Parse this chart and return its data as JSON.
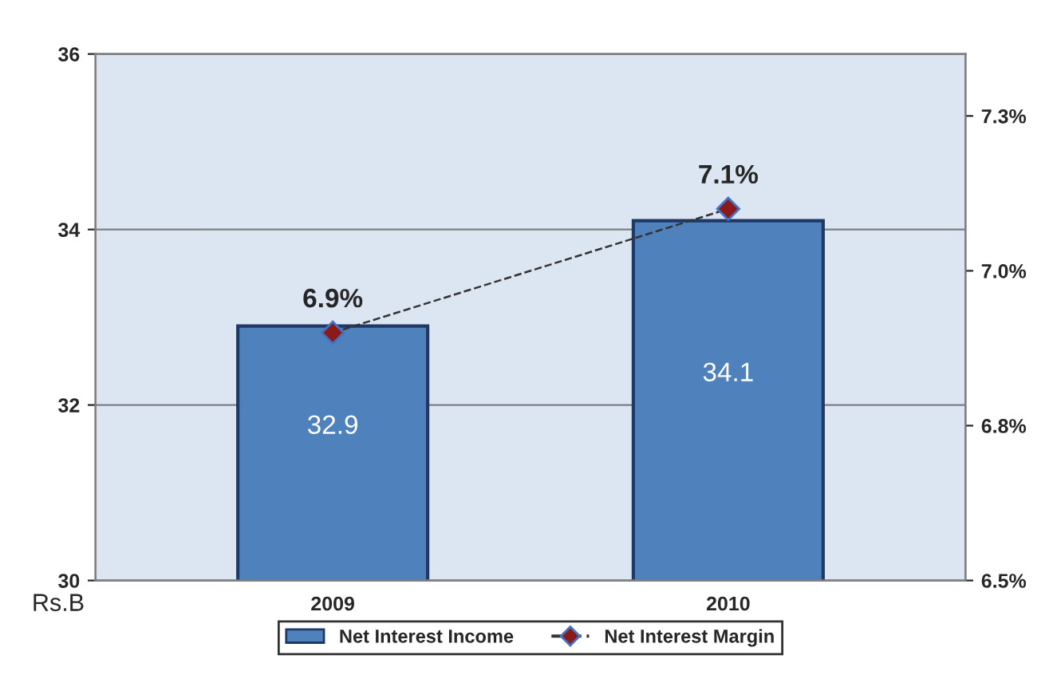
{
  "chart_data": {
    "type": "bar",
    "categories": [
      "2009",
      "2010"
    ],
    "series": [
      {
        "name": "Net Interest Income",
        "color": "#4f81bd",
        "values": [
          32.9,
          34.1
        ],
        "value_labels": [
          "32.9",
          "34.1"
        ]
      },
      {
        "name": "Net Interest Margin",
        "type": "line",
        "axis": "y2",
        "color": "#8b1a1a",
        "values": [
          6.9,
          7.1
        ],
        "value_labels": [
          "6.9%",
          "7.1%"
        ],
        "marker": "diamond",
        "line_style": "dashed"
      }
    ],
    "ylim": [
      30,
      36
    ],
    "yticks": [
      30,
      32,
      34,
      36
    ],
    "y2lim": [
      6.5,
      7.35
    ],
    "y2ticks": [
      {
        "value": 6.5,
        "label": "6.5%"
      },
      {
        "value": 6.75,
        "label": "6.8%"
      },
      {
        "value": 7.0,
        "label": "7.0%"
      },
      {
        "value": 7.25,
        "label": "7.3%"
      }
    ],
    "grid": "y",
    "legend": "bottom",
    "annotations": [
      "Rs.B"
    ]
  }
}
